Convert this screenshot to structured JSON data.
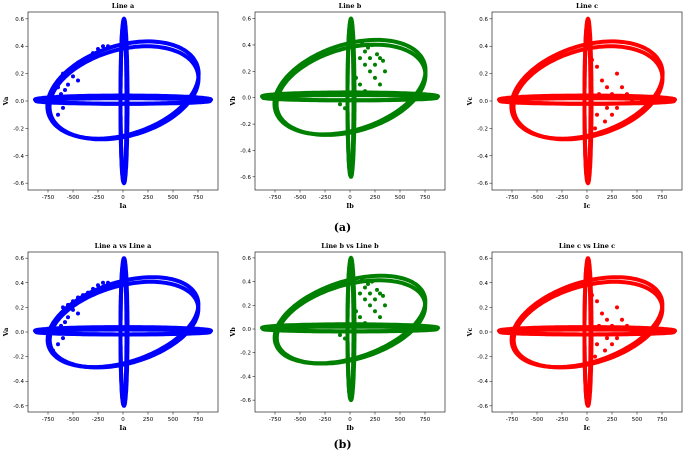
{
  "captions": {
    "top": "(a)",
    "bottom": "(b)"
  },
  "chart_data": [
    {
      "type": "scatter",
      "title": "Line a",
      "xlabel": "Ia",
      "ylabel": "Va",
      "color": "#0000ff",
      "xlim": [
        -950,
        950
      ],
      "ylim": [
        -0.65,
        0.65
      ],
      "xticks": [
        -750,
        -500,
        -250,
        0,
        250,
        500,
        750
      ],
      "yticks": [
        -0.6,
        -0.4,
        -0.2,
        0.0,
        0.2,
        0.4,
        0.6
      ],
      "series": [
        {
          "points": [
            [
              -700,
              0.02
            ],
            [
              -650,
              0.1
            ],
            [
              -600,
              0.2
            ],
            [
              -550,
              0.22
            ],
            [
              -500,
              0.25
            ],
            [
              -450,
              0.28
            ],
            [
              -400,
              0.3
            ],
            [
              -350,
              0.32
            ],
            [
              -300,
              0.35
            ],
            [
              -250,
              0.38
            ],
            [
              -200,
              0.4
            ],
            [
              -150,
              0.4
            ],
            [
              -600,
              -0.05
            ],
            [
              -650,
              -0.1
            ],
            [
              -700,
              -0.15
            ],
            [
              -550,
              0.12
            ],
            [
              -500,
              0.18
            ],
            [
              -450,
              0.15
            ],
            [
              -620,
              0.05
            ],
            [
              -580,
              0.08
            ]
          ]
        }
      ]
    },
    {
      "type": "scatter",
      "title": "Line b",
      "xlabel": "Ib",
      "ylabel": "Vb",
      "color": "#008000",
      "xlim": [
        -950,
        950
      ],
      "ylim": [
        -0.7,
        0.65
      ],
      "xticks": [
        -750,
        -500,
        -250,
        0,
        250,
        500,
        750
      ],
      "yticks": [
        -0.6,
        -0.4,
        -0.2,
        0.0,
        0.2,
        0.4,
        0.6
      ],
      "series": [
        {
          "points": [
            [
              100,
              0.3
            ],
            [
              150,
              0.35
            ],
            [
              200,
              0.3
            ],
            [
              250,
              0.25
            ],
            [
              300,
              0.3
            ],
            [
              350,
              0.2
            ],
            [
              200,
              0.2
            ],
            [
              150,
              0.25
            ],
            [
              100,
              0.1
            ],
            [
              150,
              0.05
            ],
            [
              250,
              0.15
            ],
            [
              300,
              0.1
            ],
            [
              -100,
              -0.05
            ],
            [
              -50,
              -0.08
            ],
            [
              120,
              0.42
            ],
            [
              180,
              0.38
            ],
            [
              220,
              0.4
            ],
            [
              270,
              0.33
            ],
            [
              330,
              0.28
            ],
            [
              60,
              0.15
            ]
          ]
        }
      ]
    },
    {
      "type": "scatter",
      "title": "Line c",
      "xlabel": "Ic",
      "ylabel": "Vc",
      "color": "#ff0000",
      "xlim": [
        -950,
        950
      ],
      "ylim": [
        -0.65,
        0.65
      ],
      "xticks": [
        -750,
        -500,
        -250,
        0,
        250,
        500,
        750
      ],
      "yticks": [
        -0.6,
        -0.4,
        -0.2,
        0.0,
        0.2,
        0.4,
        0.6
      ],
      "series": [
        {
          "points": [
            [
              100,
              -0.1
            ],
            [
              200,
              0.1
            ],
            [
              250,
              0.05
            ],
            [
              300,
              -0.05
            ],
            [
              400,
              0.05
            ],
            [
              450,
              0.0
            ],
            [
              350,
              0.1
            ],
            [
              200,
              -0.05
            ],
            [
              150,
              0.15
            ],
            [
              250,
              -0.1
            ],
            [
              500,
              0.02
            ],
            [
              550,
              0.0
            ],
            [
              300,
              0.2
            ],
            [
              100,
              0.25
            ],
            [
              50,
              0.3
            ],
            [
              80,
              -0.2
            ],
            [
              120,
              0.05
            ],
            [
              180,
              -0.15
            ],
            [
              600,
              0.03
            ],
            [
              650,
              0.0
            ]
          ]
        }
      ]
    },
    {
      "type": "scatter",
      "title": "Line a vs Line a",
      "xlabel": "Ia",
      "ylabel": "Va",
      "color": "#0000ff",
      "xlim": [
        -950,
        950
      ],
      "ylim": [
        -0.65,
        0.65
      ],
      "xticks": [
        -750,
        -500,
        -250,
        0,
        250,
        500,
        750
      ],
      "yticks": [
        -0.6,
        -0.4,
        -0.2,
        0.0,
        0.2,
        0.4,
        0.6
      ],
      "series": [
        {
          "points": [
            [
              -700,
              0.02
            ],
            [
              -650,
              0.1
            ],
            [
              -600,
              0.2
            ],
            [
              -550,
              0.22
            ],
            [
              -500,
              0.25
            ],
            [
              -450,
              0.28
            ],
            [
              -400,
              0.3
            ],
            [
              -350,
              0.32
            ],
            [
              -300,
              0.35
            ],
            [
              -250,
              0.38
            ],
            [
              -200,
              0.4
            ],
            [
              -150,
              0.4
            ],
            [
              -600,
              -0.05
            ],
            [
              -650,
              -0.1
            ],
            [
              -700,
              -0.15
            ],
            [
              -550,
              0.12
            ],
            [
              -500,
              0.18
            ],
            [
              -450,
              0.15
            ],
            [
              -620,
              0.05
            ],
            [
              -580,
              0.08
            ]
          ]
        }
      ]
    },
    {
      "type": "scatter",
      "title": "Line b vs Line b",
      "xlabel": "Ib",
      "ylabel": "Vb",
      "color": "#008000",
      "xlim": [
        -950,
        950
      ],
      "ylim": [
        -0.7,
        0.65
      ],
      "xticks": [
        -750,
        -500,
        -250,
        0,
        250,
        500,
        750
      ],
      "yticks": [
        -0.6,
        -0.4,
        -0.2,
        0.0,
        0.2,
        0.4,
        0.6
      ],
      "series": [
        {
          "points": [
            [
              100,
              0.3
            ],
            [
              150,
              0.35
            ],
            [
              200,
              0.3
            ],
            [
              250,
              0.25
            ],
            [
              300,
              0.3
            ],
            [
              350,
              0.2
            ],
            [
              200,
              0.2
            ],
            [
              150,
              0.25
            ],
            [
              100,
              0.1
            ],
            [
              150,
              0.05
            ],
            [
              250,
              0.15
            ],
            [
              300,
              0.1
            ],
            [
              -100,
              -0.05
            ],
            [
              -50,
              -0.08
            ],
            [
              120,
              0.42
            ],
            [
              180,
              0.38
            ],
            [
              220,
              0.4
            ],
            [
              270,
              0.33
            ],
            [
              330,
              0.28
            ],
            [
              60,
              0.15
            ]
          ]
        }
      ]
    },
    {
      "type": "scatter",
      "title": "Line c vs Line c",
      "xlabel": "Ic",
      "ylabel": "Vc",
      "color": "#ff0000",
      "xlim": [
        -950,
        950
      ],
      "ylim": [
        -0.65,
        0.65
      ],
      "xticks": [
        -750,
        -500,
        -250,
        0,
        250,
        500,
        750
      ],
      "yticks": [
        -0.6,
        -0.4,
        -0.2,
        0.0,
        0.2,
        0.4,
        0.6
      ],
      "series": [
        {
          "points": [
            [
              100,
              -0.1
            ],
            [
              200,
              0.1
            ],
            [
              250,
              0.05
            ],
            [
              300,
              -0.05
            ],
            [
              400,
              0.05
            ],
            [
              450,
              0.0
            ],
            [
              350,
              0.1
            ],
            [
              200,
              -0.05
            ],
            [
              150,
              0.15
            ],
            [
              250,
              -0.1
            ],
            [
              500,
              0.02
            ],
            [
              550,
              0.0
            ],
            [
              300,
              0.2
            ],
            [
              100,
              0.25
            ],
            [
              50,
              0.3
            ],
            [
              80,
              -0.2
            ],
            [
              120,
              0.05
            ],
            [
              180,
              -0.15
            ],
            [
              600,
              0.03
            ],
            [
              650,
              0.0
            ]
          ]
        }
      ]
    }
  ]
}
